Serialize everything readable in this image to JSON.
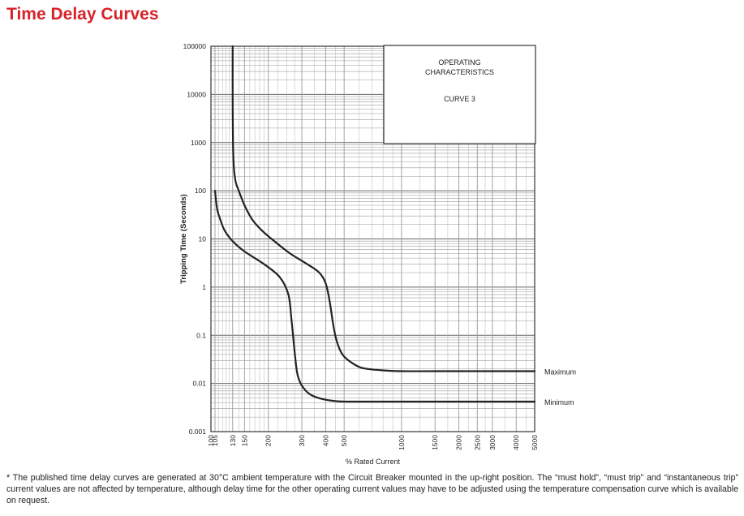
{
  "page": {
    "title": "Time Delay Curves",
    "footnote": "* The published time delay curves are generated at 30°C ambient temperature with the Circuit Breaker mounted in the up-right position. The “must hold”, “must trip” and “instantaneous trip” current values are not affected by temperature, although delay time for the other operating current values may have to be adjusted using the temperature compensation curve which is available on request."
  },
  "colors": {
    "title": "#d8232a",
    "grid": "#9a9a9a",
    "curve": "#222222",
    "frame": "#333333"
  },
  "chart_data": {
    "type": "line",
    "title": "",
    "xlabel": "% Rated Current",
    "ylabel": "Tripping Time (Seconds)",
    "x_scale": "log",
    "y_scale": "log",
    "xlim": [
      100,
      5000
    ],
    "ylim": [
      0.001,
      100000
    ],
    "grid": true,
    "x_ticks": [
      100,
      105,
      130,
      150,
      200,
      300,
      400,
      500,
      1000,
      1500,
      2000,
      2500,
      3000,
      4000,
      5000
    ],
    "x_tick_labels": [
      "100",
      "105",
      "130",
      "150",
      "200",
      "300",
      "400",
      "500",
      "1000",
      "1500",
      "2000",
      "2500",
      "3000",
      "4000",
      "5000"
    ],
    "y_ticks": [
      0.001,
      0.01,
      0.1,
      1,
      10,
      100,
      1000,
      10000,
      100000
    ],
    "y_tick_labels": [
      "0.001",
      "0.01",
      "0.1",
      "1",
      "10",
      "100",
      "1000",
      "10000",
      "100000"
    ],
    "info_box": {
      "line1": "OPERATING",
      "line2": "CHARACTERISTICS",
      "line3": "CURVE 3"
    },
    "series": [
      {
        "name": "Maximum",
        "x": [
          130,
          130,
          130.5,
          132,
          135,
          140,
          150,
          165,
          185,
          215,
          260,
          320,
          370,
          400,
          420,
          440,
          460,
          490,
          540,
          620,
          760,
          1000,
          2000,
          5000
        ],
        "y": [
          100000,
          10000,
          1000,
          300,
          150,
          100,
          50,
          25,
          15,
          9,
          5,
          3,
          2,
          1.2,
          0.5,
          0.15,
          0.07,
          0.04,
          0.028,
          0.021,
          0.019,
          0.018,
          0.018,
          0.018
        ]
      },
      {
        "name": "Minimum",
        "x": [
          105,
          106,
          108,
          112,
          118,
          130,
          150,
          190,
          230,
          255,
          265,
          272,
          278,
          285,
          300,
          330,
          380,
          450,
          520,
          700,
          1000,
          2000,
          5000
        ],
        "y": [
          100,
          70,
          40,
          25,
          15,
          9,
          5.5,
          3,
          1.6,
          0.7,
          0.2,
          0.07,
          0.03,
          0.015,
          0.009,
          0.006,
          0.0048,
          0.0043,
          0.0042,
          0.0042,
          0.0042,
          0.0042,
          0.0042
        ]
      }
    ]
  }
}
